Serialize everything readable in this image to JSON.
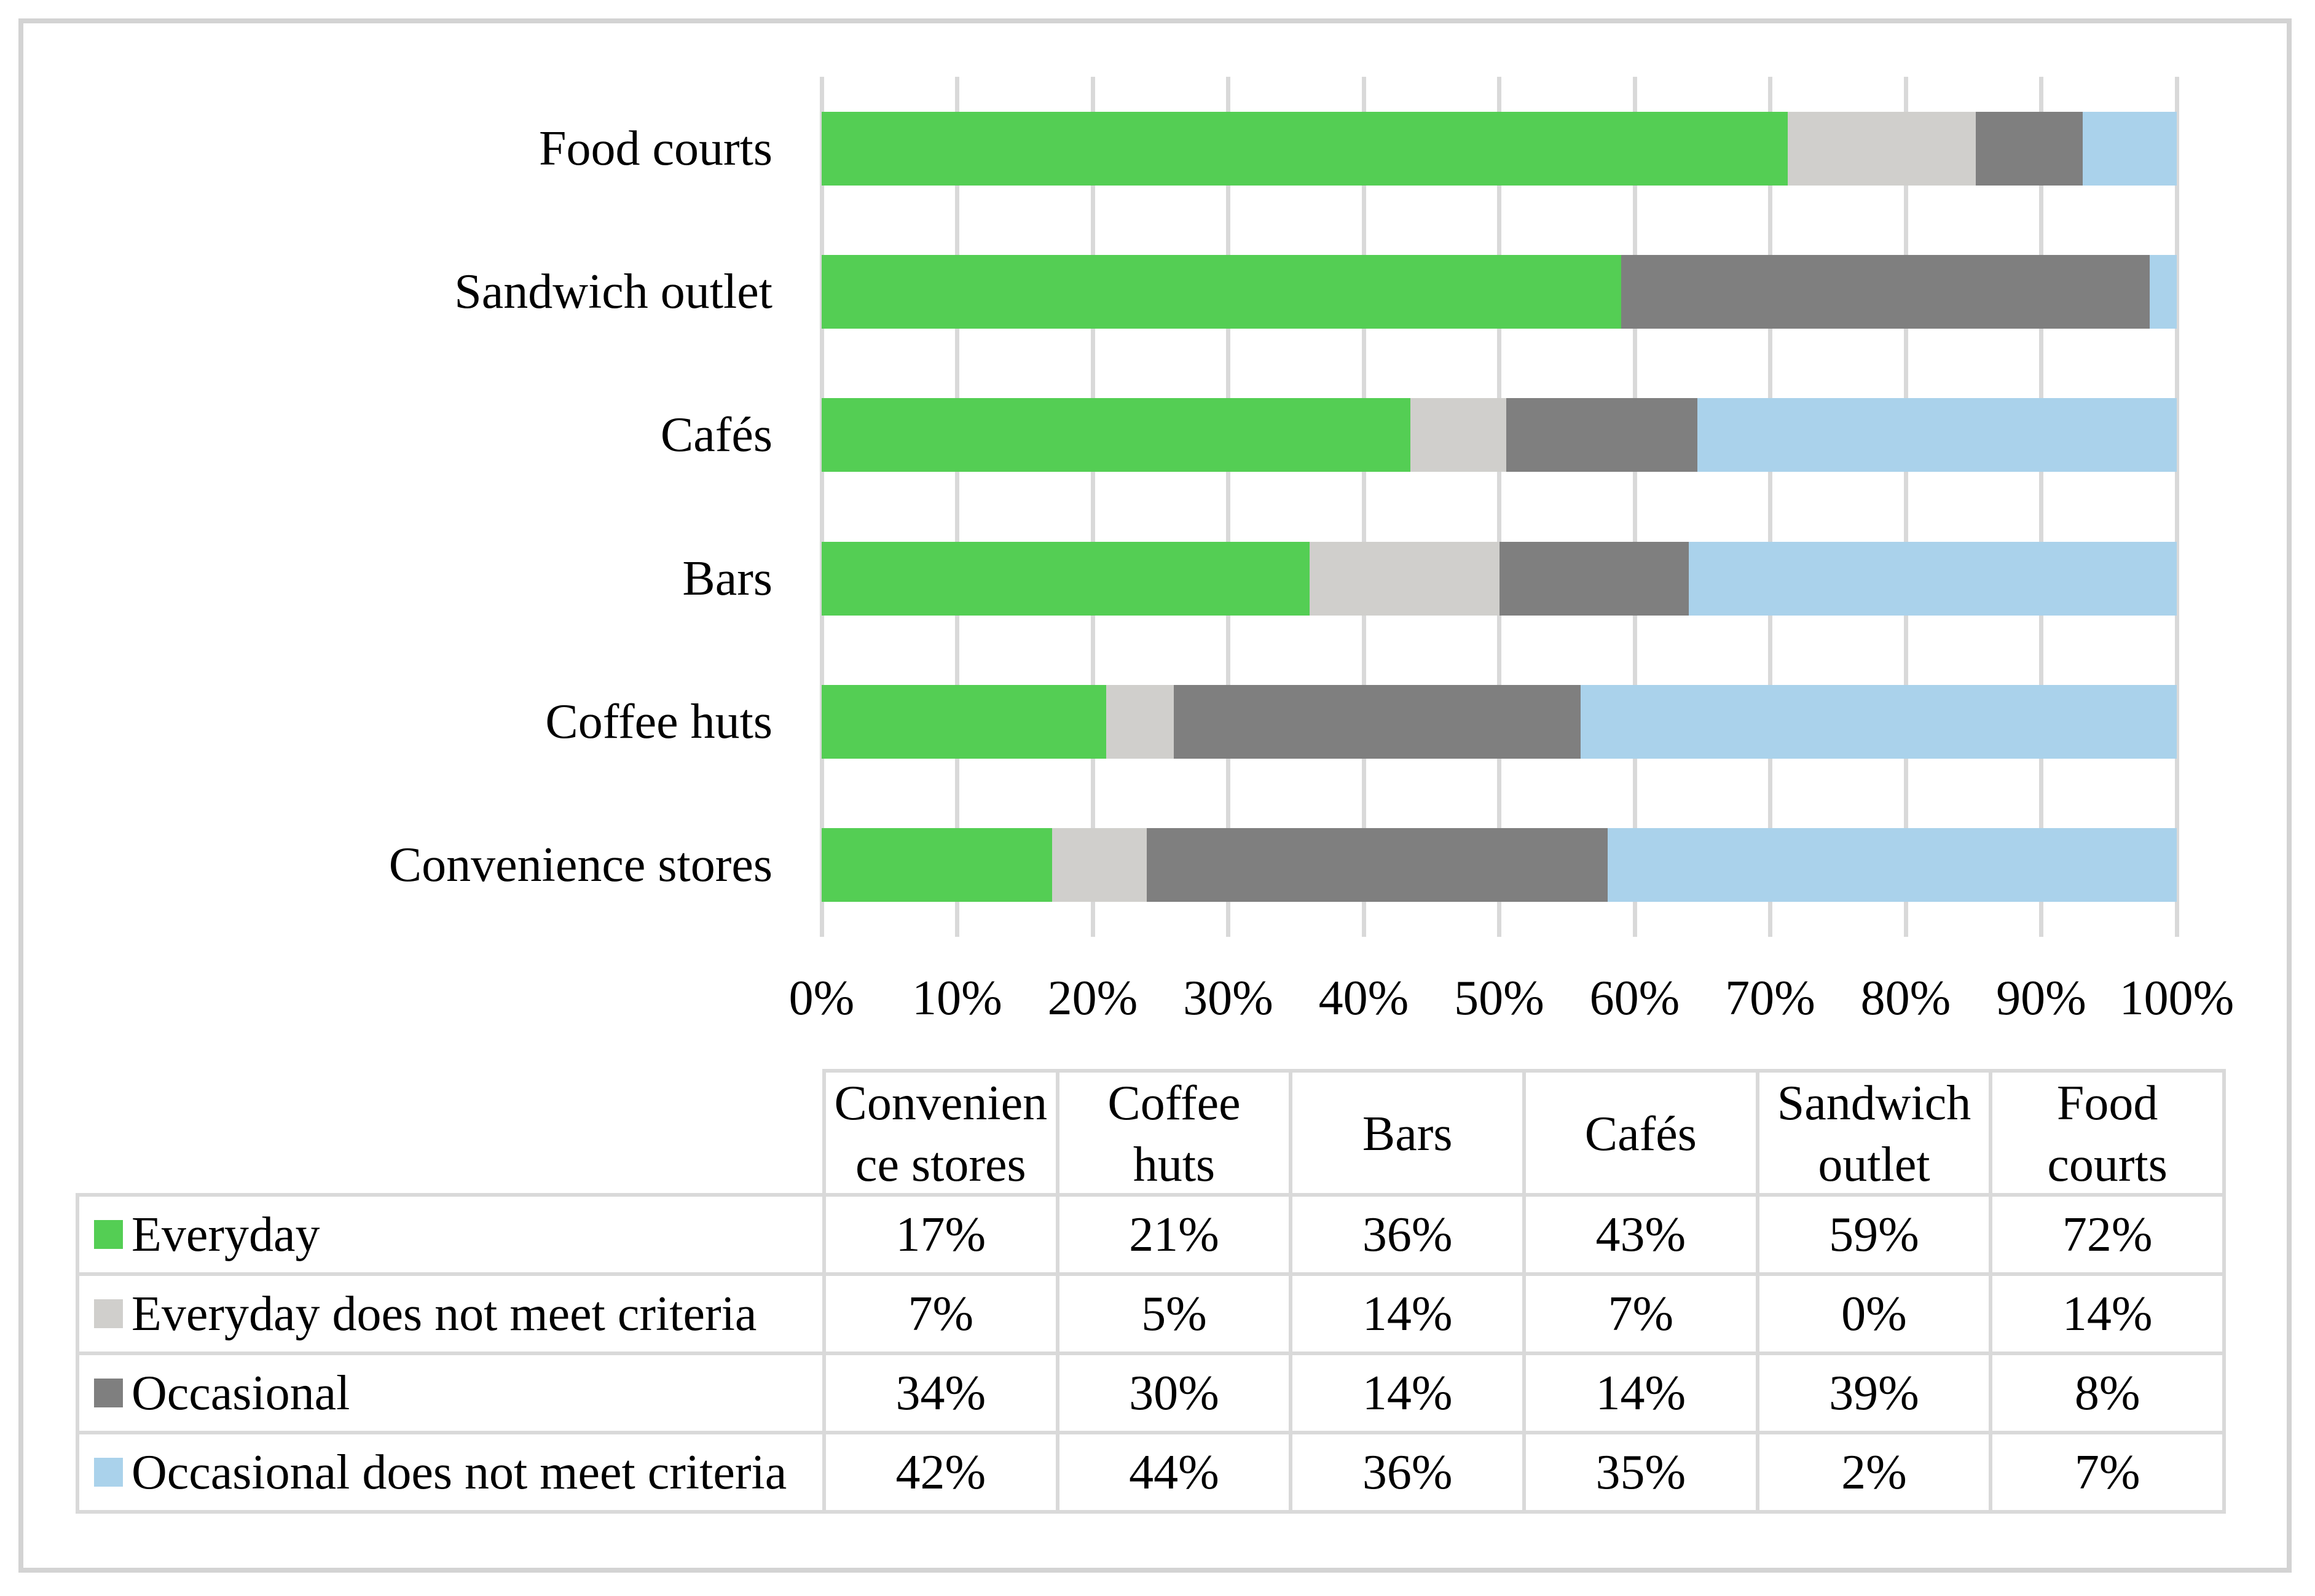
{
  "figure": {
    "kind": "100% stacked horizontal bar chart with data table",
    "background": "#FFFFFF",
    "border_color": "#D3D3D3",
    "gridline_color": "#D9D9D9",
    "table_border_color": "#D9D9D9",
    "text_color": "#000000"
  },
  "chart_data": {
    "type": "bar",
    "orientation": "horizontal",
    "stacking": "percent",
    "grid": "vertical gridlines every 10%",
    "legend_position": "in data table below chart",
    "x_axis": {
      "min": 0,
      "max": 100,
      "tick_step": 10,
      "tick_labels": [
        "0%",
        "10%",
        "20%",
        "30%",
        "40%",
        "50%",
        "60%",
        "70%",
        "80%",
        "90%",
        "100%"
      ]
    },
    "categories": [
      "Convenience stores",
      "Coffee huts",
      "Bars",
      "Cafés",
      "Sandwich outlet",
      "Food courts"
    ],
    "category_display_order_top_to_bottom": [
      5,
      4,
      3,
      2,
      1,
      0
    ],
    "series": [
      {
        "key": "everyday",
        "name": "Everyday",
        "color": "#54CE54",
        "values": [
          17,
          21,
          36,
          43,
          59,
          72
        ]
      },
      {
        "key": "everyday-does-not-meet-criteria",
        "name": "Everyday does not meet criteria",
        "color": "#D0CFCC",
        "values": [
          7,
          5,
          14,
          7,
          0,
          14
        ]
      },
      {
        "key": "occasional",
        "name": "Occasional",
        "color": "#7F7F7F",
        "values": [
          34,
          30,
          14,
          14,
          39,
          8
        ]
      },
      {
        "key": "occasional-does-not-meet-criteria",
        "name": "Occasional does not meet criteria",
        "color": "#AAD2EB",
        "values": [
          42,
          44,
          36,
          35,
          2,
          7
        ]
      }
    ]
  },
  "table": {
    "column_headers": [
      {
        "text": "Convenience stores",
        "lines": [
          "Convenien",
          "ce stores"
        ]
      },
      {
        "text": "Coffee huts",
        "lines": [
          "Coffee",
          "huts"
        ]
      },
      {
        "text": "Bars",
        "lines": [
          "Bars"
        ]
      },
      {
        "text": "Cafés",
        "lines": [
          "Cafés"
        ]
      },
      {
        "text": "Sandwich outlet",
        "lines": [
          "Sandwich",
          "outlet"
        ]
      },
      {
        "text": "Food courts",
        "lines": [
          "Food",
          "courts"
        ]
      }
    ],
    "rows": [
      {
        "key": "everyday",
        "label": "Everyday",
        "swatch_color": "#54CE54",
        "values": [
          "17%",
          "21%",
          "36%",
          "43%",
          "59%",
          "72%"
        ]
      },
      {
        "key": "everyday-does-not-meet-criteria",
        "label": "Everyday does not meet criteria",
        "swatch_color": "#D0CFCC",
        "values": [
          "7%",
          "5%",
          "14%",
          "7%",
          "0%",
          "14%"
        ]
      },
      {
        "key": "occasional",
        "label": "Occasional",
        "swatch_color": "#7F7F7F",
        "values": [
          "34%",
          "30%",
          "14%",
          "14%",
          "39%",
          "8%"
        ]
      },
      {
        "key": "occasional-does-not-meet-criteria",
        "label": "Occasional does not meet criteria",
        "swatch_color": "#AAD2EB",
        "values": [
          "42%",
          "44%",
          "36%",
          "35%",
          "2%",
          "7%"
        ]
      }
    ]
  }
}
